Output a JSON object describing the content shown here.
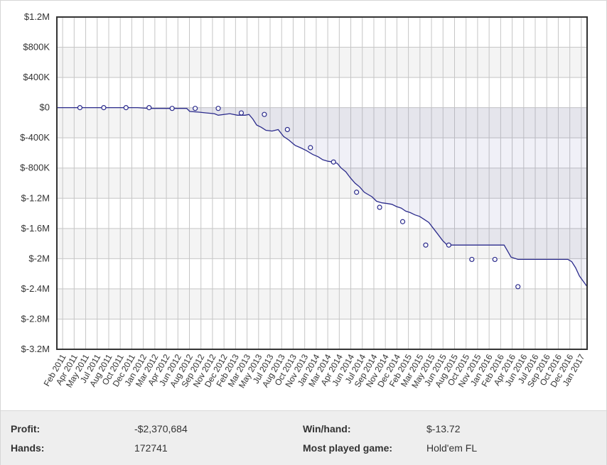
{
  "chart_data": {
    "type": "line",
    "title": "",
    "xlabel": "",
    "ylabel": "",
    "ylim": [
      -3200000,
      1200000
    ],
    "y_ticks": [
      "$1.2M",
      "$800K",
      "$400K",
      "$0",
      "$-400K",
      "$-800K",
      "$-1.2M",
      "$-1.6M",
      "$-2M",
      "$-2.4M",
      "$-2.8M",
      "$-3.2M"
    ],
    "x_ticks": [
      "Feb 2011",
      "Apr 2011",
      "May 2011",
      "Jul 2011",
      "Aug 2011",
      "Oct 2011",
      "Dec 2011",
      "Jan 2012",
      "Mar 2012",
      "Apr 2012",
      "Jun 2012",
      "Aug 2012",
      "Sep 2012",
      "Nov 2012",
      "Dec 2012",
      "Feb 2013",
      "Mar 2013",
      "May 2013",
      "Jul 2013",
      "Aug 2013",
      "Oct 2013",
      "Nov 2013",
      "Jan 2014",
      "Mar 2014",
      "Apr 2014",
      "Jun 2014",
      "Jul 2014",
      "Sep 2014",
      "Nov 2014",
      "Dec 2014",
      "Feb 2015",
      "Mar 2015",
      "May 2015",
      "Jun 2015",
      "Aug 2015",
      "Oct 2015",
      "Nov 2015",
      "Jan 2016",
      "Feb 2016",
      "Apr 2016",
      "Jun 2016",
      "Jul 2016",
      "Sep 2016",
      "Oct 2016",
      "Dec 2016",
      "Jan 2017"
    ],
    "grid": true,
    "series": [
      {
        "color": "#2b2b8c",
        "points": [
          [
            0,
            0
          ],
          [
            1.5,
            0
          ],
          [
            3,
            0
          ],
          [
            4.5,
            0
          ],
          [
            6.1,
            0
          ],
          [
            7.5,
            0
          ],
          [
            9,
            0
          ],
          [
            10.5,
            0
          ],
          [
            12,
            -10000
          ],
          [
            13.5,
            -10000
          ],
          [
            15,
            -10000
          ],
          [
            16,
            -10000
          ],
          [
            16.5,
            -10000
          ],
          [
            16.9,
            -10000
          ],
          [
            17.3,
            -50000
          ],
          [
            18.5,
            -60000
          ],
          [
            19.5,
            -70000
          ],
          [
            20.5,
            -80000
          ],
          [
            21,
            -100000
          ],
          [
            22.5,
            -80000
          ],
          [
            23.5,
            -100000
          ],
          [
            24.5,
            -100000
          ],
          [
            25,
            -90000
          ],
          [
            25.5,
            -150000
          ],
          [
            26,
            -230000
          ],
          [
            26.6,
            -260000
          ],
          [
            27.2,
            -300000
          ],
          [
            28,
            -310000
          ],
          [
            28.8,
            -290000
          ],
          [
            29.5,
            -380000
          ],
          [
            30.2,
            -430000
          ],
          [
            31,
            -500000
          ],
          [
            31.7,
            -530000
          ],
          [
            32.5,
            -570000
          ],
          [
            33.3,
            -620000
          ],
          [
            34,
            -650000
          ],
          [
            34.6,
            -690000
          ],
          [
            35.3,
            -710000
          ],
          [
            36,
            -720000
          ],
          [
            36.5,
            -740000
          ],
          [
            37,
            -800000
          ],
          [
            37.6,
            -850000
          ],
          [
            38.2,
            -930000
          ],
          [
            38.8,
            -1000000
          ],
          [
            39.4,
            -1050000
          ],
          [
            40,
            -1120000
          ],
          [
            40.5,
            -1150000
          ],
          [
            41,
            -1180000
          ],
          [
            41.6,
            -1240000
          ],
          [
            42.3,
            -1260000
          ],
          [
            43,
            -1270000
          ],
          [
            43.6,
            -1280000
          ],
          [
            44.2,
            -1310000
          ],
          [
            44.8,
            -1330000
          ],
          [
            45.4,
            -1370000
          ],
          [
            46,
            -1390000
          ],
          [
            46.6,
            -1420000
          ],
          [
            47.2,
            -1440000
          ],
          [
            47.8,
            -1480000
          ],
          [
            48.4,
            -1520000
          ],
          [
            49,
            -1600000
          ],
          [
            49.6,
            -1680000
          ],
          [
            50.2,
            -1760000
          ],
          [
            50.8,
            -1820000
          ],
          [
            51.6,
            -1820000
          ],
          [
            52.5,
            -1820000
          ],
          [
            54,
            -1820000
          ],
          [
            55.5,
            -1820000
          ],
          [
            57,
            -1820000
          ],
          [
            58.2,
            -1820000
          ],
          [
            58.6,
            -1890000
          ],
          [
            59.1,
            -1980000
          ],
          [
            60,
            -2010000
          ],
          [
            61.5,
            -2010000
          ],
          [
            63,
            -2010000
          ],
          [
            64,
            -2010000
          ],
          [
            65.5,
            -2010000
          ],
          [
            66.5,
            -2010000
          ],
          [
            67,
            -2040000
          ],
          [
            67.5,
            -2120000
          ],
          [
            68,
            -2230000
          ],
          [
            68.5,
            -2300000
          ],
          [
            69,
            -2370684
          ]
        ],
        "markers": [
          [
            3,
            0
          ],
          [
            6.1,
            0
          ],
          [
            9,
            0
          ],
          [
            12,
            0
          ],
          [
            15,
            -10000
          ],
          [
            18,
            -10000
          ],
          [
            21,
            -10000
          ],
          [
            24,
            -70000
          ],
          [
            27,
            -90000
          ],
          [
            30,
            -290000
          ],
          [
            33,
            -530000
          ],
          [
            36,
            -720000
          ],
          [
            39,
            -1120000
          ],
          [
            42,
            -1320000
          ],
          [
            45,
            -1510000
          ],
          [
            48,
            -1820000
          ],
          [
            51,
            -1820000
          ],
          [
            54,
            -2010000
          ],
          [
            57,
            -2010000
          ],
          [
            60,
            -2370684
          ]
        ]
      }
    ]
  },
  "stats": {
    "profit_label": "Profit:",
    "profit_value": "-$2,370,684",
    "hands_label": "Hands:",
    "hands_value": "172741",
    "winhand_label": "Win/hand:",
    "winhand_value": "$-13.72",
    "game_label": "Most played game:",
    "game_value": "Hold'em FL"
  }
}
